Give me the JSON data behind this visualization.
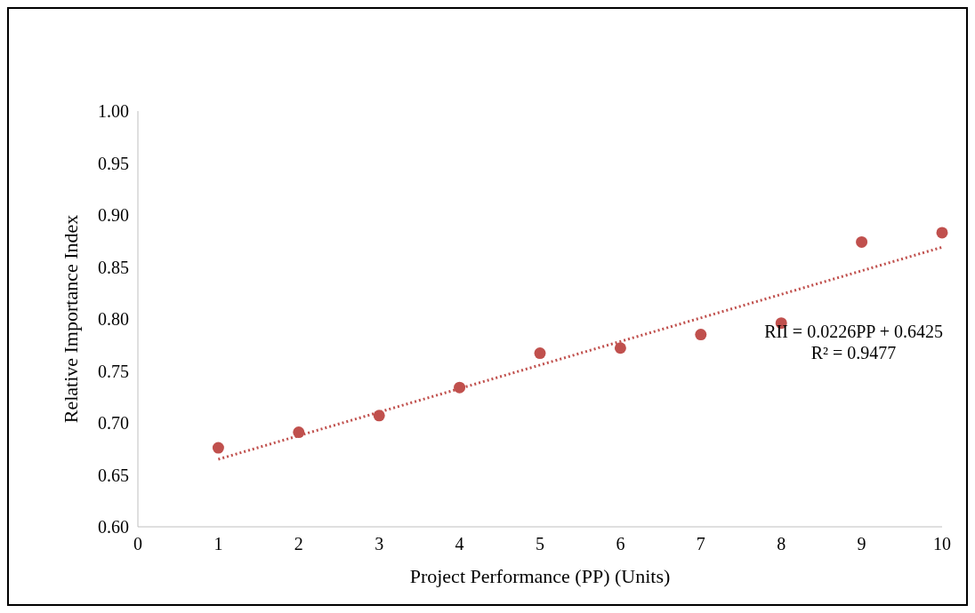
{
  "chart_data": {
    "type": "scatter",
    "xlabel": "Project Performance (PP) (Units)",
    "ylabel": "Relative Importance Index",
    "x": [
      1,
      2,
      3,
      4,
      5,
      6,
      7,
      8,
      9,
      10
    ],
    "series": [
      {
        "color": "#c0504d",
        "marker": "circle",
        "values": [
          0.676,
          0.691,
          0.707,
          0.734,
          0.767,
          0.772,
          0.785,
          0.796,
          0.874,
          0.883
        ]
      },
      {
        "type": "line",
        "color": "#c0504d",
        "line_style": "dotted",
        "x": [
          1,
          10
        ],
        "values": [
          0.665,
          0.869
        ]
      }
    ],
    "xlim": [
      0,
      10
    ],
    "xticks": [
      0,
      1,
      2,
      3,
      4,
      5,
      6,
      7,
      8,
      9,
      10
    ],
    "ylim": [
      0.6,
      1.0
    ],
    "yticks": [
      {
        "value": 0.6,
        "label": "0.60"
      },
      {
        "value": 0.65,
        "label": "0.65"
      },
      {
        "value": 0.7,
        "label": "0.70"
      },
      {
        "value": 0.75,
        "label": "0.75"
      },
      {
        "value": 0.8,
        "label": "0.80"
      },
      {
        "value": 0.85,
        "label": "0.85"
      },
      {
        "value": 0.9,
        "label": "0.90"
      },
      {
        "value": 0.95,
        "label": "0.95"
      },
      {
        "value": 1.0,
        "label": "1.00"
      }
    ],
    "annotations": [
      "RII = 0.0226PP + 0.6425",
      "R² = 0.9477"
    ]
  }
}
